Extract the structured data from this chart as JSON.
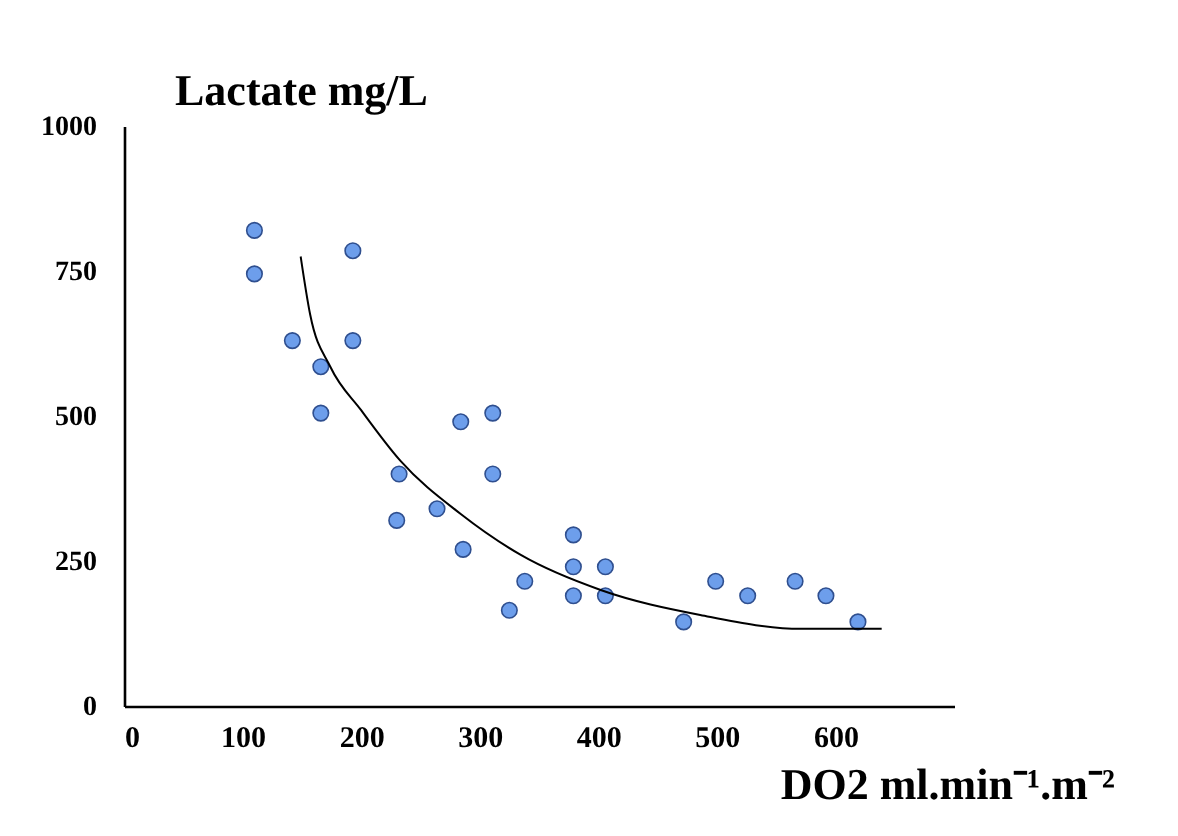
{
  "chart_data": {
    "type": "scatter",
    "xlabel": "DO2 ml.min⁻¹.m⁻²",
    "ylabel": "Lactate mg/L",
    "xlim": [
      0,
      700
    ],
    "ylim": [
      0,
      1000
    ],
    "xticks": [
      0,
      100,
      200,
      300,
      400,
      500,
      600
    ],
    "yticks": [
      0,
      250,
      500,
      750,
      1000
    ],
    "grid": false,
    "marker": "circle",
    "series": [
      {
        "color": "#6d9eeb",
        "x": [
          110,
          110,
          142,
          166,
          166,
          193,
          193,
          232,
          230,
          264,
          286,
          284,
          311,
          311,
          325,
          338,
          379,
          379,
          379,
          406,
          406,
          472,
          499,
          526,
          566,
          592,
          619
        ],
        "values": [
          820,
          745,
          630,
          585,
          505,
          630,
          785,
          400,
          320,
          340,
          270,
          490,
          505,
          400,
          165,
          215,
          295,
          240,
          190,
          240,
          190,
          145,
          215,
          190,
          215,
          190,
          145
        ]
      },
      {
        "type": "line",
        "color": "#000000",
        "marker": "none",
        "line_style": "solid",
        "x": [
          149,
          157,
          174,
          200,
          233,
          284,
          335,
          402,
          486,
          571,
          639
        ],
        "values": [
          775,
          675,
          585,
          510,
          423,
          331,
          260,
          200,
          157,
          133,
          133
        ]
      }
    ]
  }
}
